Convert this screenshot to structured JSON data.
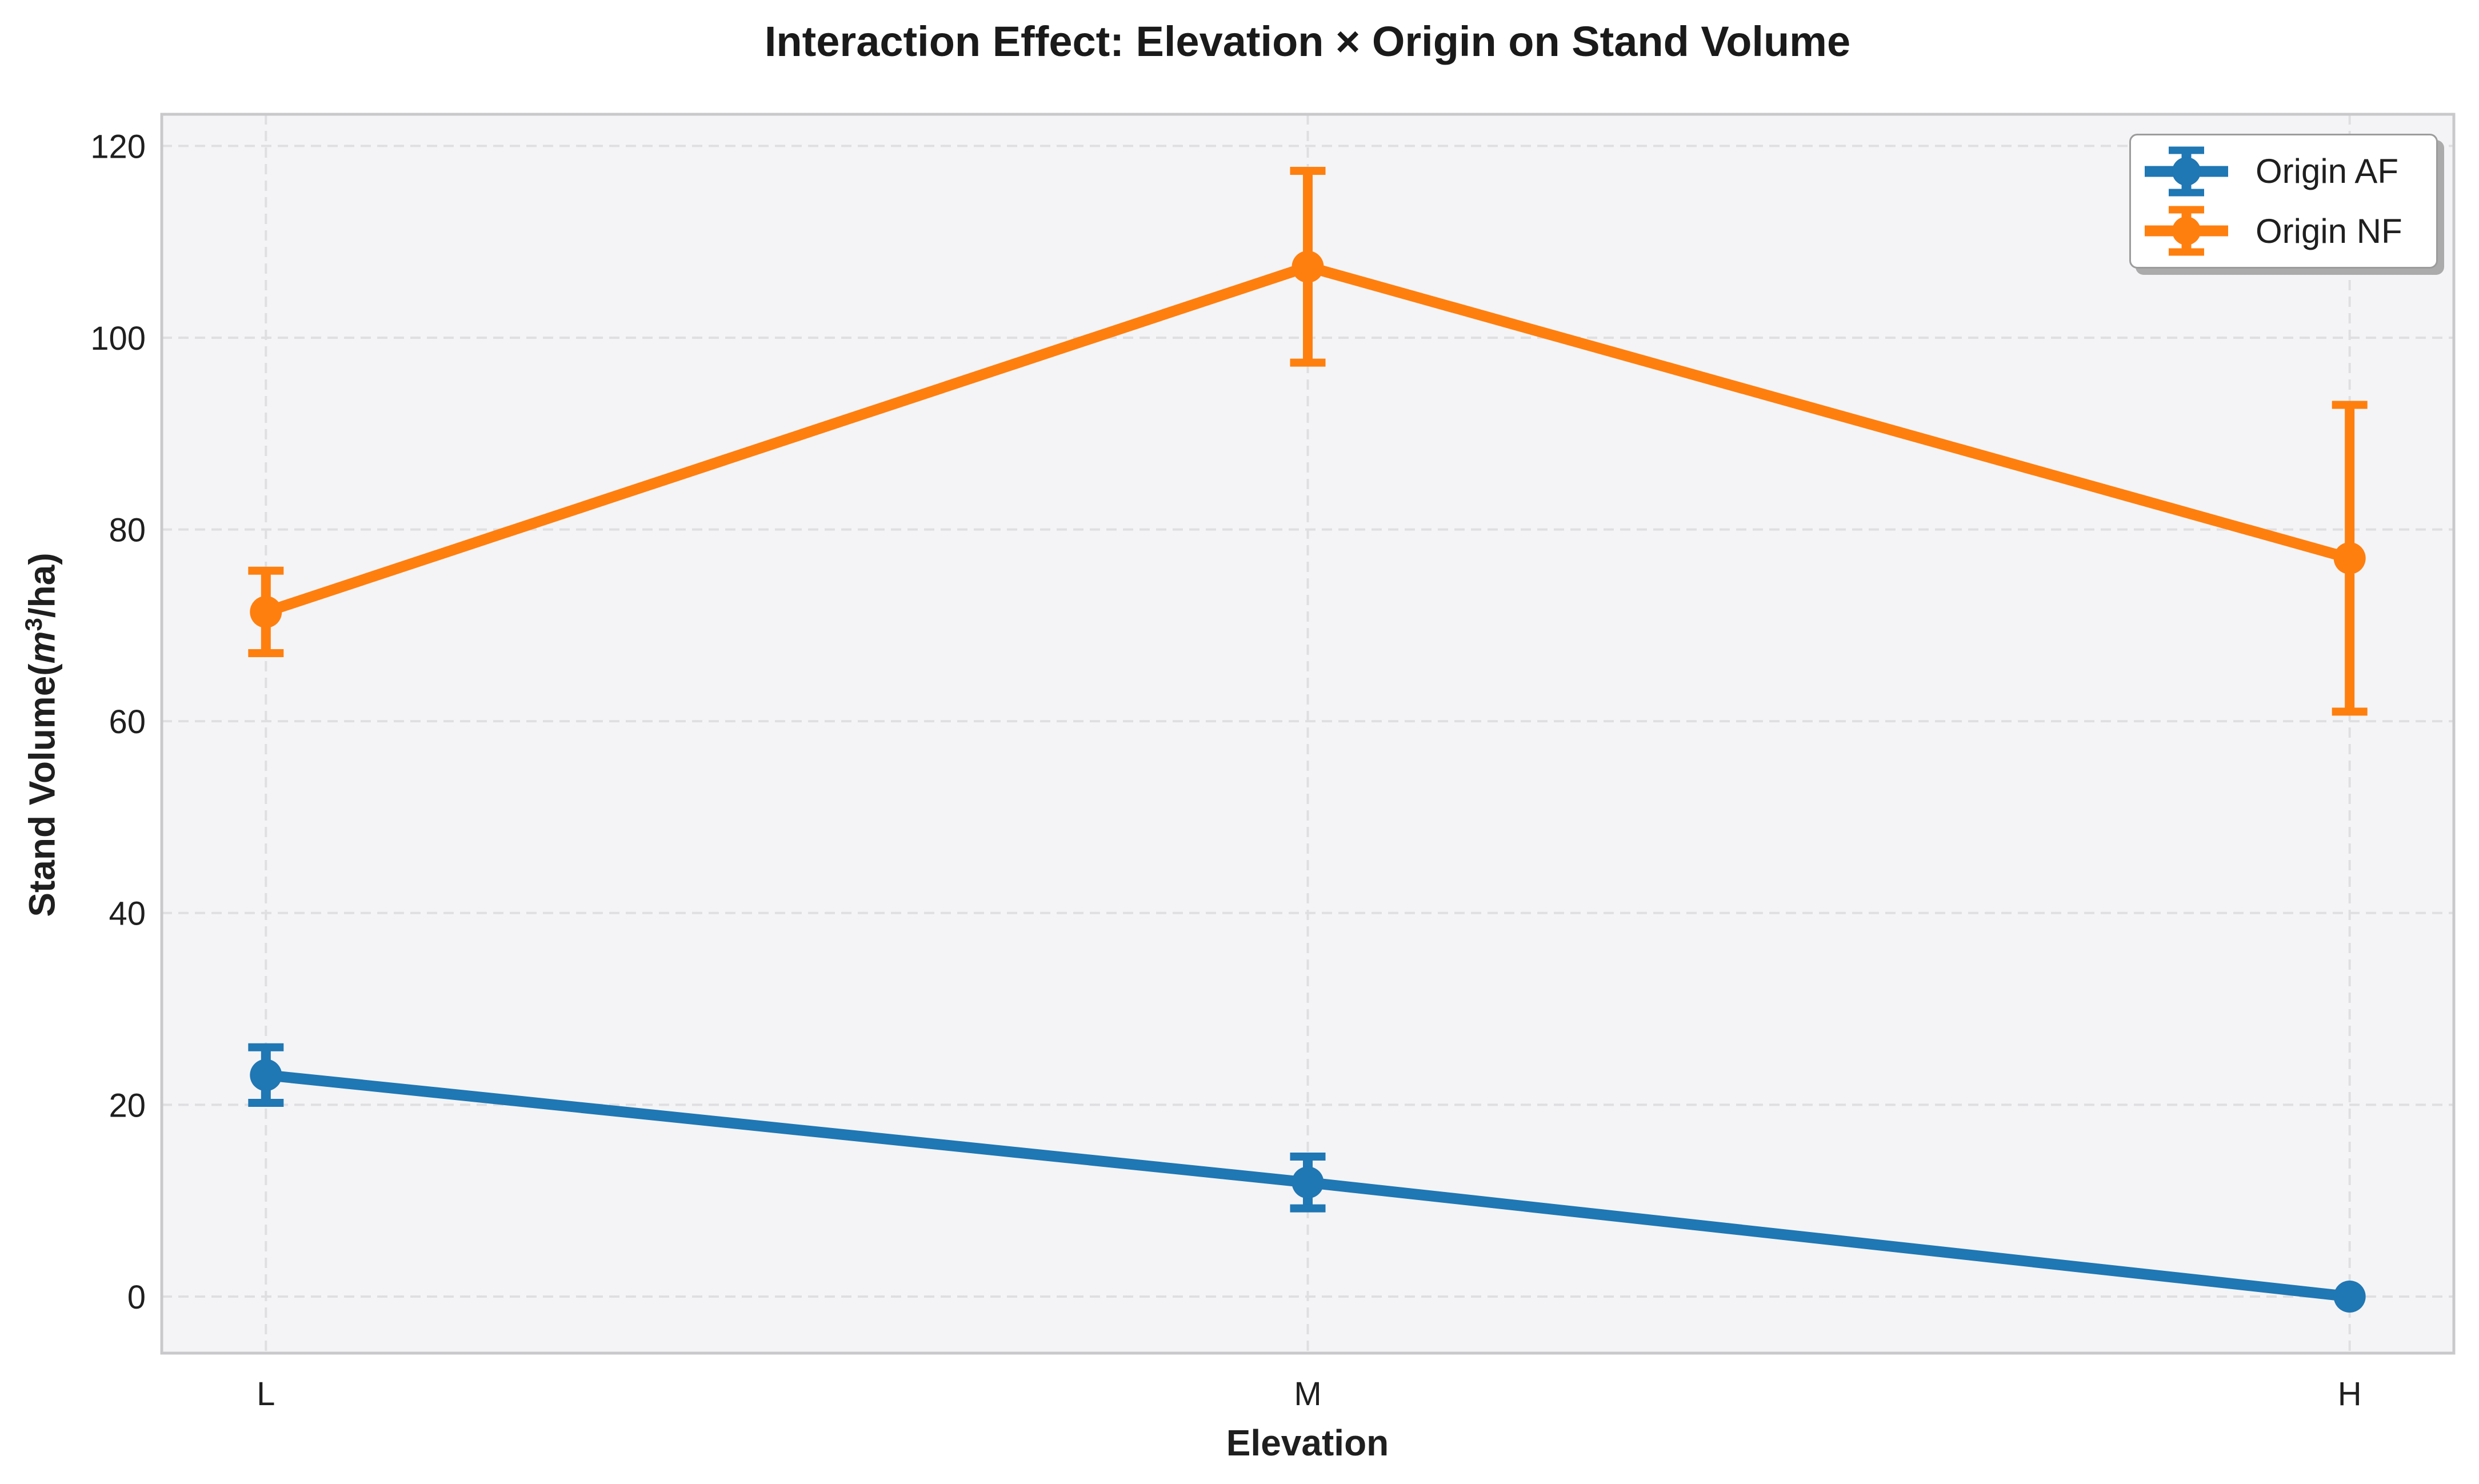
{
  "chart_data": {
    "type": "line",
    "title": "Interaction Effect: Elevation × Origin on Stand Volume",
    "xlabel": "Elevation",
    "ylabel": "Stand Volume(m³/ha)",
    "ylabel_parts": {
      "prefix": "Stand Volume(",
      "italic_symbol": "m",
      "superscript": "3",
      "suffix": "/ha)"
    },
    "categories": [
      "L",
      "M",
      "H"
    ],
    "series": [
      {
        "name": "Origin AF",
        "color": "#1f77b4",
        "values": [
          23.1,
          11.9,
          0.0
        ],
        "yerr": [
          2.9,
          2.7,
          0.0
        ]
      },
      {
        "name": "Origin NF",
        "color": "#ff7f0e",
        "values": [
          71.4,
          107.4,
          77.0
        ],
        "yerr": [
          4.3,
          10.0,
          16.0
        ]
      }
    ],
    "yticks": [
      0,
      20,
      40,
      60,
      80,
      100,
      120
    ],
    "ylim": [
      -5.9,
      123.3
    ],
    "xlim": [
      -0.1,
      2.1
    ],
    "grid": "dashed-both-axes",
    "legend_position": "upper right",
    "marker": "circle",
    "error_caps": true,
    "colors": {
      "axes_background": "#f4f4f6",
      "grid": "#dfdfe2",
      "spine": "#c9c9cc",
      "text": "#1f1f1f"
    }
  }
}
